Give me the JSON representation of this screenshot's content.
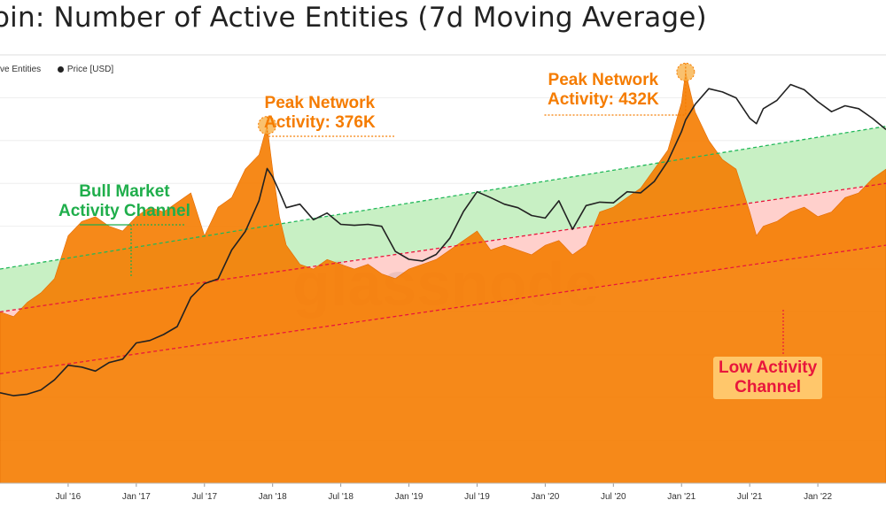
{
  "title": "oin: Number of Active Entities (7d Moving Average)",
  "legend": [
    {
      "label": "ve Entities",
      "color": "#F57C00"
    },
    {
      "label": "Price [USD]",
      "color": "#222222"
    }
  ],
  "watermark": "glassnode",
  "colors": {
    "entities": "#F57C00",
    "price": "#222222",
    "bull_channel": "#C8F0C4",
    "low_channel": "#FFD0CC",
    "green_line": "#22B85A",
    "red_line": "#E8163C",
    "annotation_orange": "#F57C00",
    "annotation_green": "#1FAE4B"
  },
  "annotations": {
    "peak1": "Peak Network\nActivity: 376K",
    "peak2": "Peak Network\nActivity: 432K",
    "bull": "Bull Market\nActivity Channel",
    "low": "Low Activity\nChannel"
  },
  "chart_data": {
    "type": "area",
    "title": "oin: Number of Active Entities (7d Moving Average)",
    "x_ticks": [
      "Jul '16",
      "Jan '17",
      "Jul '17",
      "Jan '18",
      "Jul '18",
      "Jan '19",
      "Jul '19",
      "Jan '20",
      "Jul '20",
      "Jan '21",
      "Jul '21",
      "Jan '22"
    ],
    "xlim": [
      2016.0,
      2022.5
    ],
    "ylim": [
      0,
      450000
    ],
    "grid": true,
    "series": [
      {
        "name": "ve Entities",
        "axis": "left",
        "x": [
          2016.0,
          2016.1,
          2016.2,
          2016.3,
          2016.4,
          2016.5,
          2016.6,
          2016.7,
          2016.8,
          2016.9,
          2017.0,
          2017.1,
          2017.2,
          2017.3,
          2017.4,
          2017.5,
          2017.6,
          2017.7,
          2017.8,
          2017.9,
          2017.96,
          2018.0,
          2018.05,
          2018.1,
          2018.2,
          2018.3,
          2018.4,
          2018.5,
          2018.6,
          2018.7,
          2018.8,
          2018.9,
          2019.0,
          2019.1,
          2019.2,
          2019.3,
          2019.4,
          2019.5,
          2019.6,
          2019.7,
          2019.8,
          2019.9,
          2020.0,
          2020.1,
          2020.2,
          2020.3,
          2020.4,
          2020.5,
          2020.6,
          2020.7,
          2020.8,
          2020.9,
          2021.0,
          2021.03,
          2021.1,
          2021.2,
          2021.3,
          2021.4,
          2021.5,
          2021.55,
          2021.6,
          2021.7,
          2021.8,
          2021.9,
          2022.0,
          2022.1,
          2022.2,
          2022.3,
          2022.4,
          2022.5
        ],
        "values": [
          180000,
          175000,
          190000,
          200000,
          215000,
          260000,
          275000,
          280000,
          270000,
          265000,
          280000,
          290000,
          285000,
          295000,
          305000,
          260000,
          290000,
          300000,
          330000,
          345000,
          376000,
          330000,
          280000,
          250000,
          230000,
          225000,
          235000,
          230000,
          225000,
          230000,
          220000,
          215000,
          225000,
          230000,
          235000,
          245000,
          255000,
          265000,
          245000,
          250000,
          245000,
          240000,
          250000,
          255000,
          240000,
          250000,
          285000,
          290000,
          300000,
          310000,
          330000,
          350000,
          400000,
          432000,
          390000,
          360000,
          340000,
          330000,
          285000,
          260000,
          270000,
          275000,
          285000,
          290000,
          280000,
          285000,
          300000,
          305000,
          320000,
          330000
        ]
      },
      {
        "name": "Price [USD]",
        "axis": "right",
        "scale": "log",
        "x": [
          2016.0,
          2016.1,
          2016.2,
          2016.3,
          2016.4,
          2016.5,
          2016.6,
          2016.7,
          2016.8,
          2016.9,
          2017.0,
          2017.1,
          2017.2,
          2017.3,
          2017.4,
          2017.5,
          2017.6,
          2017.7,
          2017.8,
          2017.9,
          2017.96,
          2018.0,
          2018.05,
          2018.1,
          2018.2,
          2018.3,
          2018.4,
          2018.5,
          2018.6,
          2018.7,
          2018.8,
          2018.9,
          2019.0,
          2019.1,
          2019.2,
          2019.3,
          2019.4,
          2019.5,
          2019.6,
          2019.7,
          2019.8,
          2019.9,
          2020.0,
          2020.1,
          2020.2,
          2020.3,
          2020.4,
          2020.5,
          2020.6,
          2020.7,
          2020.8,
          2020.9,
          2021.0,
          2021.03,
          2021.1,
          2021.2,
          2021.3,
          2021.4,
          2021.5,
          2021.55,
          2021.6,
          2021.7,
          2021.8,
          2021.9,
          2022.0,
          2022.1,
          2022.2,
          2022.3,
          2022.4,
          2022.5
        ],
        "values": [
          430,
          410,
          420,
          450,
          530,
          670,
          650,
          610,
          700,
          740,
          960,
          1000,
          1100,
          1250,
          2000,
          2500,
          2700,
          4300,
          5800,
          9500,
          16000,
          14000,
          11000,
          8500,
          9000,
          7000,
          7800,
          6500,
          6400,
          6500,
          6300,
          4200,
          3700,
          3600,
          4000,
          5200,
          8000,
          11000,
          10000,
          9000,
          8500,
          7500,
          7200,
          9500,
          6000,
          8800,
          9300,
          9200,
          11000,
          10800,
          13000,
          18000,
          29000,
          35000,
          45000,
          58000,
          55000,
          50000,
          36000,
          33000,
          42000,
          48000,
          62000,
          57000,
          47000,
          40000,
          44000,
          42000,
          36000,
          30000
        ]
      }
    ],
    "channels": [
      {
        "name": "Bull Market Activity Channel",
        "upper": [
          225000,
          375000
        ],
        "lower": [
          180000,
          315000
        ]
      },
      {
        "name": "Low Activity Channel",
        "upper": [
          180000,
          315000
        ],
        "lower": [
          115000,
          250000
        ]
      }
    ]
  }
}
